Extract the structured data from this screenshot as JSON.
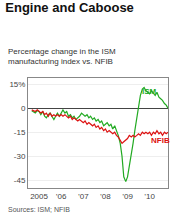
{
  "chart_data": {
    "type": "line",
    "title": "Engine and Caboose",
    "subtitle": "Percentage change in the ISM\nmanufacturing index vs. NFIB",
    "source": "Sources: ISM; NFIB",
    "x": [
      2004.67,
      2004.75,
      2004.83,
      2004.92,
      2005.0,
      2005.08,
      2005.17,
      2005.25,
      2005.33,
      2005.42,
      2005.5,
      2005.58,
      2005.67,
      2005.75,
      2005.83,
      2005.92,
      2006.0,
      2006.08,
      2006.17,
      2006.25,
      2006.33,
      2006.42,
      2006.5,
      2006.58,
      2006.67,
      2006.75,
      2006.83,
      2006.92,
      2007.0,
      2007.08,
      2007.17,
      2007.25,
      2007.33,
      2007.42,
      2007.5,
      2007.58,
      2007.67,
      2007.75,
      2007.83,
      2007.92,
      2008.0,
      2008.08,
      2008.17,
      2008.25,
      2008.33,
      2008.42,
      2008.5,
      2008.58,
      2008.67,
      2008.75,
      2008.83,
      2008.92,
      2009.0,
      2009.08,
      2009.17,
      2009.25,
      2009.33,
      2009.42,
      2009.5,
      2009.58,
      2009.67,
      2009.75,
      2009.83,
      2009.92,
      2010.0,
      2010.08,
      2010.17,
      2010.25,
      2010.33,
      2010.42,
      2010.5,
      2010.58,
      2010.67,
      2010.75,
      2010.83
    ],
    "series": [
      {
        "name": "ISM",
        "color": "#22aa22",
        "values": [
          -1.5,
          -2,
          -3,
          -1.5,
          -2,
          -4,
          -2,
          -5,
          -6,
          -4,
          -3,
          -5,
          -7,
          -5,
          -3,
          -5,
          -3,
          -1,
          -3,
          -2,
          -5,
          -4,
          -6,
          -5,
          -7,
          -6,
          -5,
          -3,
          -4,
          -5,
          -4,
          -6,
          -5,
          -7,
          -6,
          -8,
          -7,
          -9,
          -8,
          -11,
          -10,
          -9,
          -11,
          -10,
          -13,
          -11,
          -14,
          -17,
          -22,
          -30,
          -43,
          -46,
          -43,
          -37,
          -29,
          -22,
          -14,
          -6,
          2,
          8,
          12,
          13,
          11,
          10,
          9,
          11,
          9,
          8,
          10,
          7,
          6,
          5,
          3,
          2,
          0
        ]
      },
      {
        "name": "NFIB",
        "color": "#dd1111",
        "values": [
          -1,
          -1.5,
          -2,
          -1,
          -2,
          -3,
          -2,
          -4,
          -3,
          -5,
          -3,
          -5,
          -4,
          -5,
          -4,
          -5,
          -4,
          -5,
          -4,
          -5,
          -6,
          -5,
          -7,
          -6,
          -7,
          -8,
          -7,
          -8,
          -9,
          -8,
          -10,
          -9,
          -10,
          -11,
          -10,
          -12,
          -11,
          -13,
          -12,
          -14,
          -13,
          -15,
          -14,
          -15,
          -16,
          -15,
          -17,
          -18,
          -20,
          -22,
          -21,
          -20,
          -19,
          -17,
          -18,
          -17,
          -18,
          -17,
          -16,
          -17,
          -15,
          -16,
          -15,
          -16,
          -15,
          -17,
          -15,
          -16,
          -14,
          -16,
          -15,
          -17,
          -15,
          -16,
          -15
        ]
      }
    ],
    "annotations": [
      {
        "text": "ISM",
        "x": 2009.55,
        "y": 10.5,
        "color": "#22aa22"
      },
      {
        "text": "NFIB",
        "x": 2009.95,
        "y": -20.5,
        "color": "#dd1111"
      }
    ],
    "xlim": [
      2004.5,
      2010.83
    ],
    "xticks": [
      2005,
      {
        "value": 2006,
        "label": "’06"
      },
      {
        "value": 2007,
        "label": "’07"
      },
      {
        "value": 2008,
        "label": "’08"
      },
      {
        "value": 2009,
        "label": "’09"
      },
      {
        "value": 2010,
        "label": "’10"
      }
    ],
    "ylim": [
      -50,
      19
    ],
    "yticks": [
      {
        "value": 15,
        "label": "15%"
      },
      0,
      -15,
      -30,
      -45
    ],
    "grid": true
  }
}
